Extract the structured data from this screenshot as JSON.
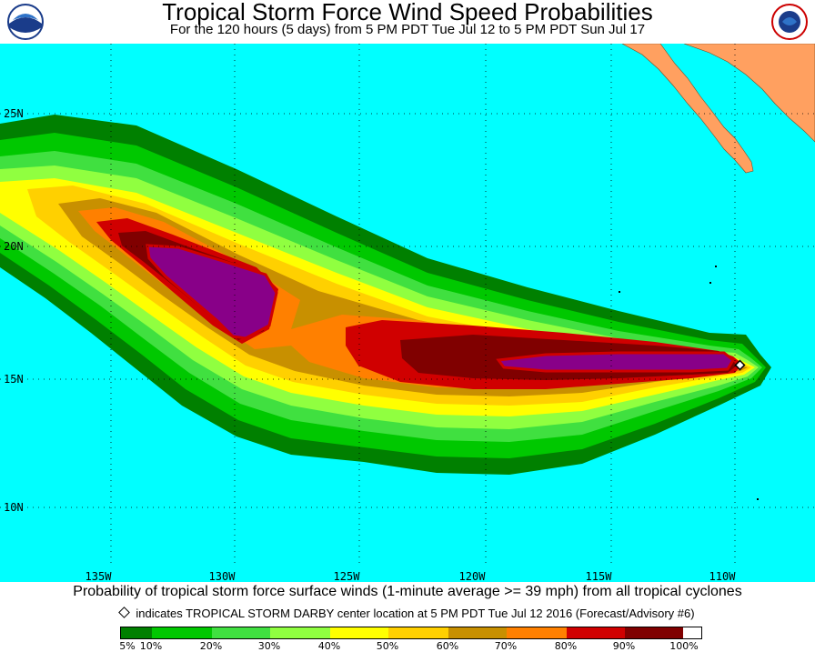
{
  "title": "Tropical Storm Force Wind Speed Probabilities",
  "subtitle": "For the 120 hours (5 days) from 5 PM PDT Tue Jul 12 to 5 PM PDT Sun Jul 17",
  "logos": {
    "left": "noaa-logo-icon",
    "right": "national-weather-service-logo-icon"
  },
  "map": {
    "ocean_color": "#00FFFF",
    "land_color": "#FFA060",
    "lat_labels": [
      "25N",
      "20N",
      "15N",
      "10N"
    ],
    "lon_labels": [
      "135W",
      "130W",
      "125W",
      "120W",
      "115W",
      "110W"
    ],
    "storm_marker": "storm-center-diamond-icon"
  },
  "captions": {
    "line1": "Probability of tropical storm force surface winds (1-minute average >= 39 mph) from all tropical cyclones",
    "line2": "indicates TROPICAL STORM DARBY center location at 5 PM PDT Tue Jul 12 2016 (Forecast/Advisory #6)"
  },
  "legend": {
    "colors": [
      "#008000",
      "#00C800",
      "#40E040",
      "#90FF40",
      "#FFFF00",
      "#FFD000",
      "#C89000",
      "#FF8000",
      "#D00000",
      "#800000",
      "#880088"
    ],
    "labels": [
      "5%",
      "10%",
      "20%",
      "30%",
      "40%",
      "50%",
      "60%",
      "70%",
      "80%",
      "90%",
      "100%"
    ]
  }
}
